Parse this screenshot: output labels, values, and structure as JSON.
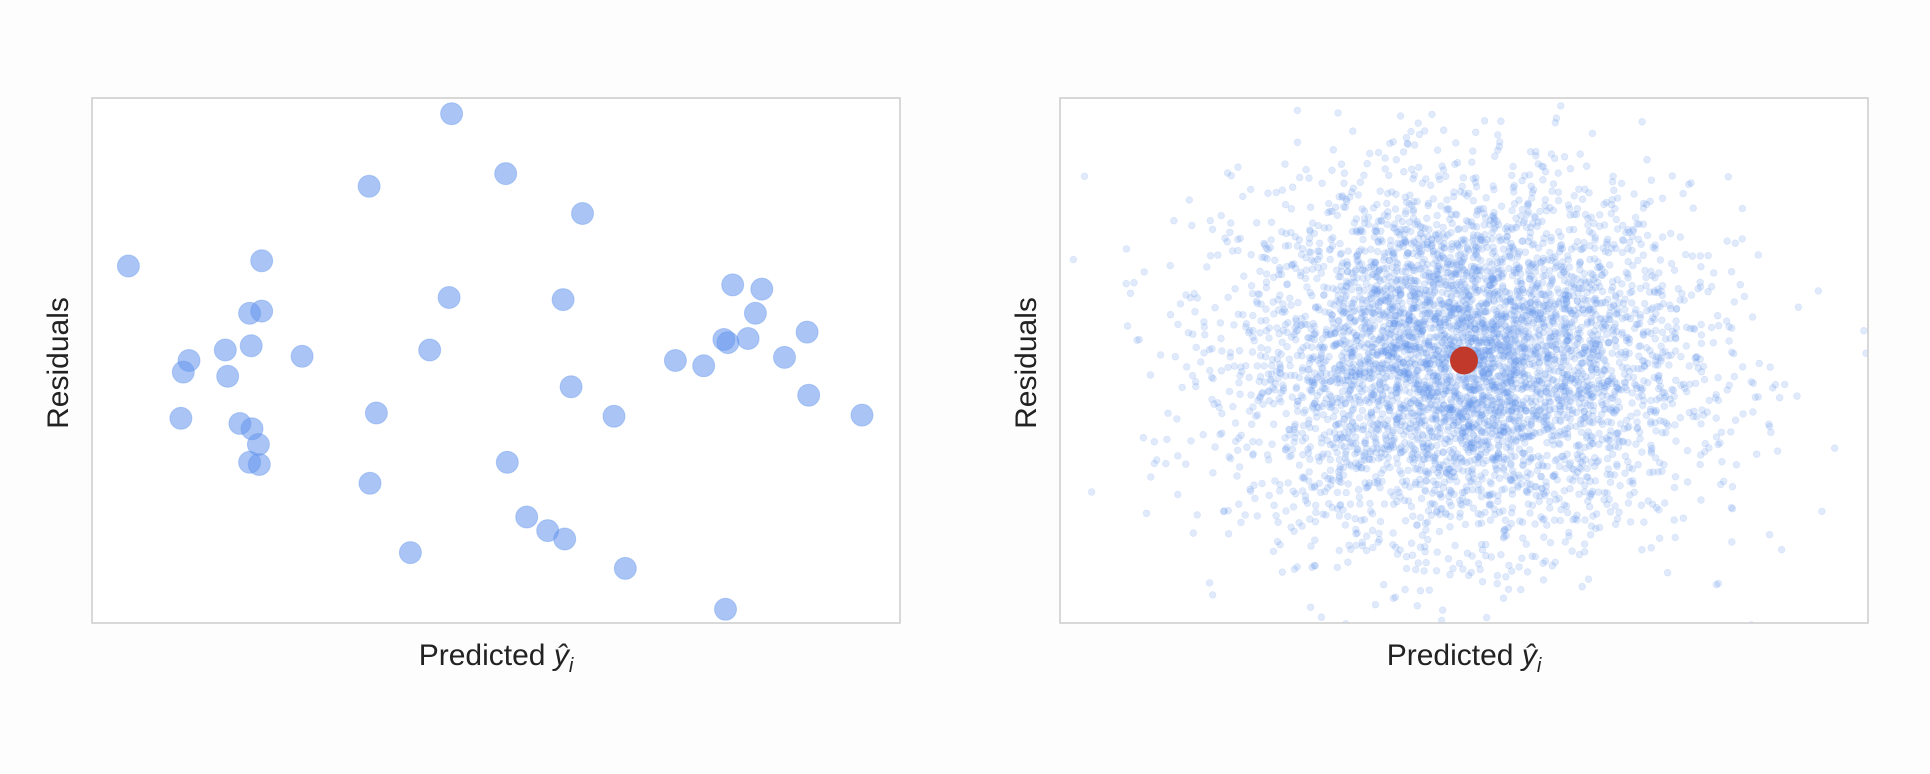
{
  "figure": {
    "background": "#fdfdfd",
    "frame_color": "#cccccc",
    "point_color": "#6495ed",
    "highlight_color": "#c0392b"
  },
  "chart_data": [
    {
      "type": "scatter",
      "title": "",
      "xlabel_text": "Predicted ",
      "xlabel_symbol": "ŷ",
      "xlabel_subscript": "i",
      "ylabel": "Residuals",
      "xlim": [
        0,
        100
      ],
      "ylim": [
        -2.5,
        2.5
      ],
      "ticks_visible": false,
      "grid": false,
      "point_alpha": 0.55,
      "points": [
        {
          "x": 4.5,
          "y": 0.9
        },
        {
          "x": 21.0,
          "y": 0.95
        },
        {
          "x": 19.5,
          "y": 0.45
        },
        {
          "x": 21.0,
          "y": 0.47
        },
        {
          "x": 16.5,
          "y": 0.1
        },
        {
          "x": 19.7,
          "y": 0.14
        },
        {
          "x": 12.0,
          "y": 0.0
        },
        {
          "x": 11.3,
          "y": -0.11
        },
        {
          "x": 16.8,
          "y": -0.15
        },
        {
          "x": 11.0,
          "y": -0.55
        },
        {
          "x": 18.3,
          "y": -0.6
        },
        {
          "x": 19.8,
          "y": -0.65
        },
        {
          "x": 20.6,
          "y": -0.8
        },
        {
          "x": 19.5,
          "y": -0.97
        },
        {
          "x": 20.7,
          "y": -0.99
        },
        {
          "x": 34.3,
          "y": 1.66
        },
        {
          "x": 44.5,
          "y": 2.35
        },
        {
          "x": 51.2,
          "y": 1.78
        },
        {
          "x": 60.7,
          "y": 1.4
        },
        {
          "x": 44.2,
          "y": 0.6
        },
        {
          "x": 58.3,
          "y": 0.58
        },
        {
          "x": 41.8,
          "y": 0.1
        },
        {
          "x": 26.0,
          "y": 0.04
        },
        {
          "x": 59.3,
          "y": -0.25
        },
        {
          "x": 35.2,
          "y": -0.5
        },
        {
          "x": 64.6,
          "y": -0.53
        },
        {
          "x": 34.4,
          "y": -1.17
        },
        {
          "x": 51.4,
          "y": -0.97
        },
        {
          "x": 53.8,
          "y": -1.49
        },
        {
          "x": 56.4,
          "y": -1.62
        },
        {
          "x": 58.5,
          "y": -1.7
        },
        {
          "x": 39.4,
          "y": -1.83
        },
        {
          "x": 66.0,
          "y": -1.98
        },
        {
          "x": 78.4,
          "y": -2.37
        },
        {
          "x": 72.2,
          "y": 0.0
        },
        {
          "x": 75.7,
          "y": -0.05
        },
        {
          "x": 78.7,
          "y": 0.17
        },
        {
          "x": 78.2,
          "y": 0.2
        },
        {
          "x": 81.2,
          "y": 0.21
        },
        {
          "x": 82.1,
          "y": 0.45
        },
        {
          "x": 79.3,
          "y": 0.72
        },
        {
          "x": 82.9,
          "y": 0.68
        },
        {
          "x": 88.5,
          "y": 0.27
        },
        {
          "x": 85.7,
          "y": 0.03
        },
        {
          "x": 88.7,
          "y": -0.33
        },
        {
          "x": 95.3,
          "y": -0.52
        }
      ]
    },
    {
      "type": "scatter",
      "title": "",
      "xlabel_text": "Predicted ",
      "xlabel_symbol": "ŷ",
      "xlabel_subscript": "i",
      "ylabel": "Residuals",
      "xlim": [
        -3.6,
        3.6
      ],
      "ylim": [
        -3.0,
        3.0
      ],
      "ticks_visible": false,
      "grid": false,
      "point_alpha": 0.2,
      "points_generated": {
        "count": 5000,
        "distribution": "gaussian",
        "mean": [
          0,
          0
        ],
        "sd": [
          1.0,
          1.0
        ]
      },
      "highlight_point": {
        "x": 0.0,
        "y": 0.0,
        "color": "#c0392b"
      }
    }
  ]
}
